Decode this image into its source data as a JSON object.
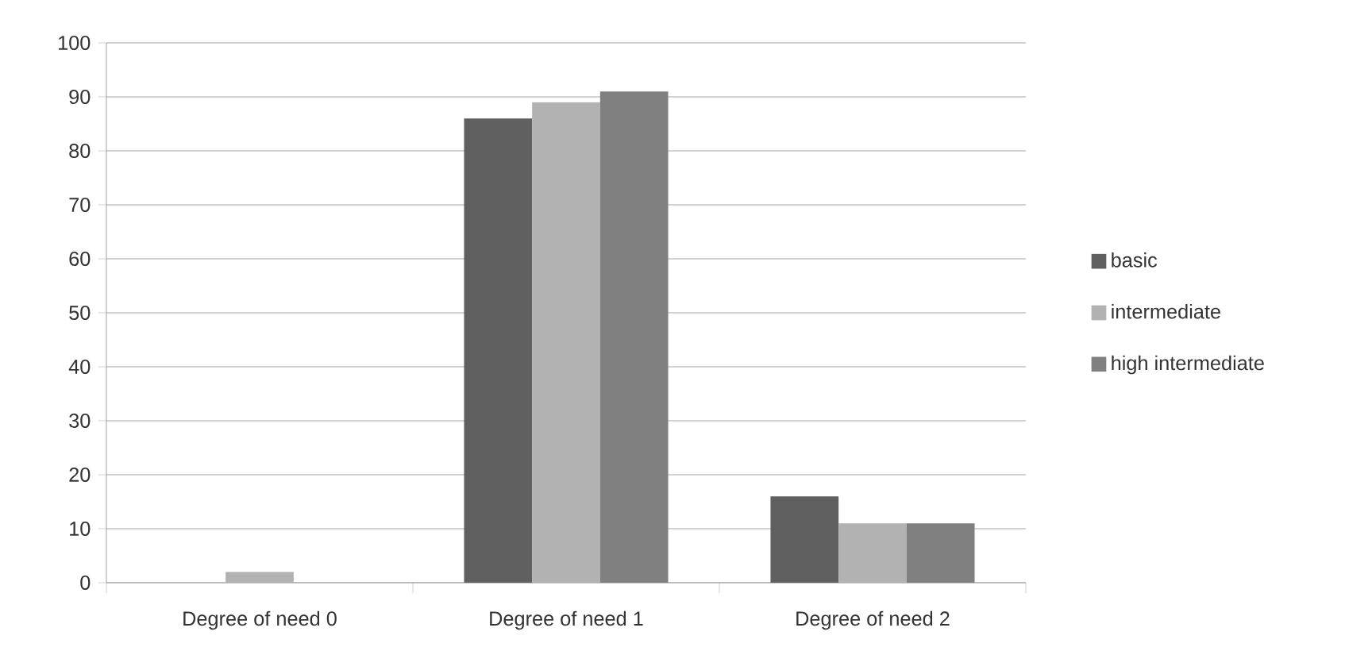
{
  "chart_data": {
    "type": "bar",
    "categories": [
      "Degree of need 0",
      "Degree of need 1",
      "Degree of need 2"
    ],
    "series": [
      {
        "name": "basic",
        "color": "#606060",
        "values": [
          0,
          86,
          16
        ]
      },
      {
        "name": "intermediate",
        "color": "#b2b2b2",
        "values": [
          2,
          89,
          11
        ]
      },
      {
        "name": "high intermediate",
        "color": "#808080",
        "values": [
          0,
          91,
          11
        ]
      }
    ],
    "ylim": [
      0,
      100
    ],
    "yticks": [
      0,
      10,
      20,
      30,
      40,
      50,
      60,
      70,
      80,
      90,
      100
    ],
    "grid": "y",
    "legend": "right"
  }
}
